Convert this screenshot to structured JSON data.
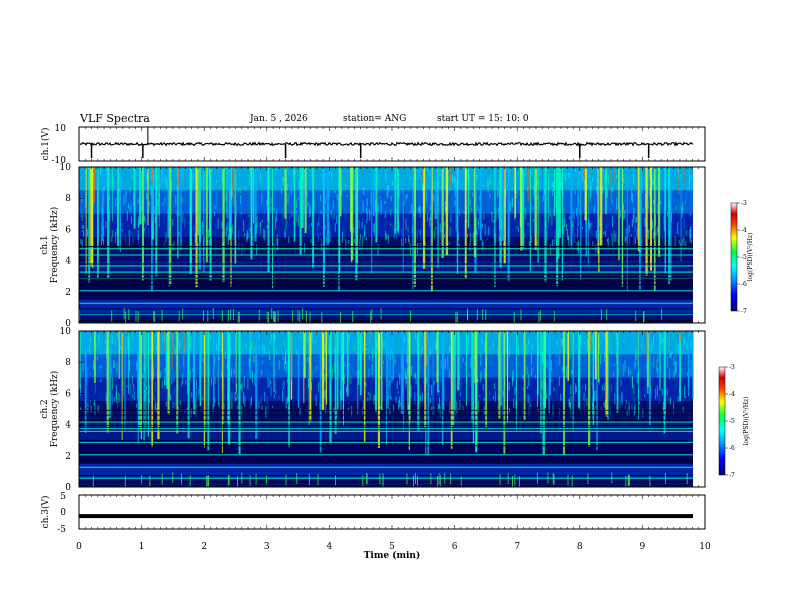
{
  "header": {
    "title": "VLF Spectra",
    "date": "Jan. 5 , 2026",
    "station": "station= ANG",
    "start": "start UT = 15: 10: 0"
  },
  "colors": {
    "background": "#ffffff",
    "axis": "#000000",
    "colormap": [
      "#00007f",
      "#0000ff",
      "#00a0ff",
      "#00ffff",
      "#00ff40",
      "#ffff00",
      "#ff4000",
      "#cc0000",
      "#ffffff"
    ]
  },
  "chart_data": [
    {
      "type": "line",
      "name": "ch1-waveform",
      "ylabel": "ch.1(V)",
      "ylim": [
        -10,
        10
      ],
      "yticks": [
        "10",
        "-10"
      ],
      "x": [
        0,
        10
      ],
      "baseline": 0,
      "spikes_min": [
        0.2,
        1.02,
        3.3,
        4.5,
        8.0,
        9.1
      ]
    },
    {
      "type": "heatmap",
      "name": "ch1-spectrogram",
      "ylabel_line1": "ch.1",
      "ylabel_line2": "Frequency (kHz)",
      "ylim": [
        0,
        10
      ],
      "yticks": [
        "0",
        "2",
        "4",
        "6",
        "8",
        "10"
      ],
      "xlim": [
        0,
        10
      ],
      "colorbar": {
        "label": "log(PSD)(V²/Hz)",
        "range": [
          -7,
          -3
        ],
        "ticks": [
          "-3",
          "-4",
          "-5",
          "-6",
          "-7"
        ]
      },
      "bright_lines_khz": [
        0.6,
        1.3,
        2.1,
        2.9,
        3.3,
        3.7,
        4.4,
        4.8
      ]
    },
    {
      "type": "heatmap",
      "name": "ch2-spectrogram",
      "ylabel_line1": "ch.2",
      "ylabel_line2": "Frequency (kHz)",
      "ylim": [
        0,
        10
      ],
      "yticks": [
        "0",
        "2",
        "4",
        "6",
        "8",
        "10"
      ],
      "xlim": [
        0,
        10
      ],
      "colorbar": {
        "label": "log(PSD)(V²/Hz)",
        "range": [
          -7,
          -3
        ],
        "ticks": [
          "-3",
          "-4",
          "-5",
          "-6",
          "-7"
        ]
      },
      "bright_lines_khz": [
        0.6,
        1.3,
        2.1,
        2.9,
        3.6,
        3.8,
        4.2
      ]
    },
    {
      "type": "line",
      "name": "ch3-waveform",
      "ylabel": "ch.3(V)",
      "ylim": [
        -5,
        5
      ],
      "yticks": [
        "5",
        "0",
        "-5"
      ],
      "level": -1.2
    },
    {
      "type": "axis",
      "name": "time-axis",
      "xlabel": "Time (min)",
      "xlim": [
        0,
        10
      ],
      "xticks": [
        "0",
        "1",
        "2",
        "3",
        "4",
        "5",
        "6",
        "7",
        "8",
        "9",
        "10"
      ]
    }
  ]
}
